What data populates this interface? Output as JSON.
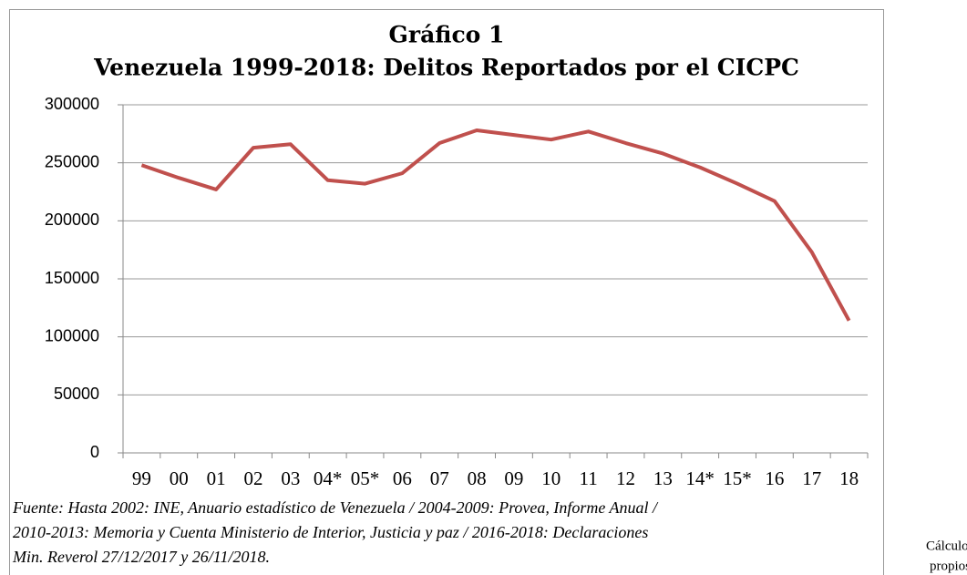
{
  "chart_data": {
    "type": "line",
    "title": "Gráfico 1",
    "subtitle": "Venezuela 1999-2018: Delitos Reportados por el CICPC",
    "categories": [
      "99",
      "00",
      "01",
      "02",
      "03",
      "04*",
      "05*",
      "06",
      "07",
      "08",
      "09",
      "10",
      "11",
      "12",
      "13",
      "14*",
      "15*",
      "16",
      "17",
      "18"
    ],
    "series": [
      {
        "name": "Delitos Reportados",
        "color": "#c0504d",
        "values": [
          248000,
          237000,
          227000,
          263000,
          266000,
          235000,
          232000,
          241000,
          267000,
          278000,
          274000,
          270000,
          277000,
          267000,
          258000,
          246000,
          232000,
          217000,
          173000,
          114000
        ]
      }
    ],
    "ylim": [
      0,
      300000
    ],
    "yticks": [
      0,
      50000,
      100000,
      150000,
      200000,
      250000,
      300000
    ],
    "grid": true,
    "source_lines": [
      "Fuente:  Hasta 2002: INE, Anuario estadístico de Venezuela / 2004-2009: Provea, Informe Anual /",
      "2010-2013: Memoria y Cuenta Ministerio de Interior, Justicia y paz / 2016-2018: Declaraciones",
      "Min. Reverol 27/12/2017 y 26/11/2018."
    ],
    "side_note": [
      "Cálculos",
      "propios"
    ]
  }
}
